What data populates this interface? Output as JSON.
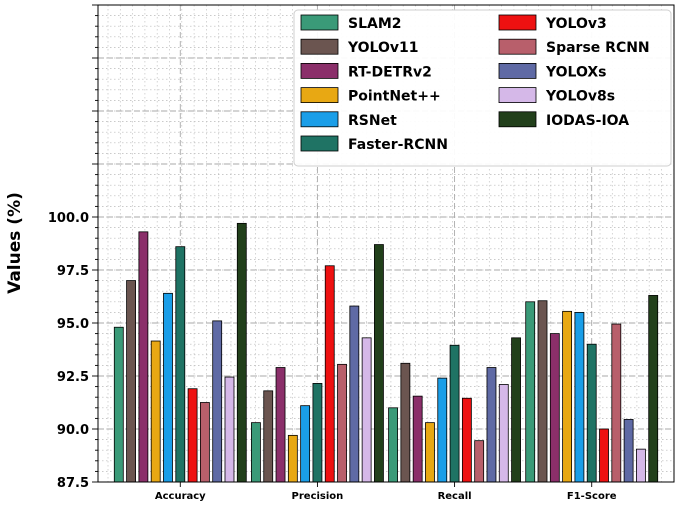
{
  "chart_data": {
    "type": "bar",
    "title": "",
    "xlabel": "",
    "ylabel": "Values (%)",
    "ylim": [
      87.5,
      110
    ],
    "yticks": [
      "87.5",
      "90.0",
      "92.5",
      "95.0",
      "97.5",
      "100.0"
    ],
    "grid": true,
    "legend_position": "top-right",
    "categories": [
      "Accuracy",
      "Precision",
      "Recall",
      "F1-Score"
    ],
    "series": [
      {
        "name": "SLAM2",
        "color": "#3a9a78",
        "values": [
          94.8,
          90.3,
          91.0,
          96.0
        ]
      },
      {
        "name": "YOLOv11",
        "color": "#6b5550",
        "values": [
          97.0,
          91.8,
          93.1,
          96.05
        ]
      },
      {
        "name": "RT-DETRv2",
        "color": "#8b2f6a",
        "values": [
          99.3,
          92.9,
          91.55,
          94.5
        ]
      },
      {
        "name": "PointNet++",
        "color": "#e8a813",
        "values": [
          94.15,
          89.7,
          90.3,
          95.55
        ]
      },
      {
        "name": "RSNet",
        "color": "#1a9ee8",
        "values": [
          96.4,
          91.1,
          92.4,
          95.5
        ]
      },
      {
        "name": "Faster-RCNN",
        "color": "#1f7364",
        "values": [
          98.6,
          92.15,
          93.95,
          94.0
        ]
      },
      {
        "name": "YOLOv3",
        "color": "#ee1111",
        "values": [
          91.9,
          97.7,
          91.45,
          90.0
        ]
      },
      {
        "name": "Sparse RCNN",
        "color": "#b85f6b",
        "values": [
          91.25,
          93.05,
          89.45,
          94.95
        ]
      },
      {
        "name": "YOLOXs",
        "color": "#5f6aa5",
        "values": [
          95.1,
          95.8,
          92.9,
          90.45
        ]
      },
      {
        "name": "YOLOv8s",
        "color": "#d5b8e8",
        "values": [
          92.45,
          94.3,
          92.1,
          89.05
        ]
      },
      {
        "name": "IODAS-IOA",
        "color": "#22401b",
        "values": [
          99.7,
          98.7,
          94.3,
          96.3
        ]
      }
    ]
  }
}
